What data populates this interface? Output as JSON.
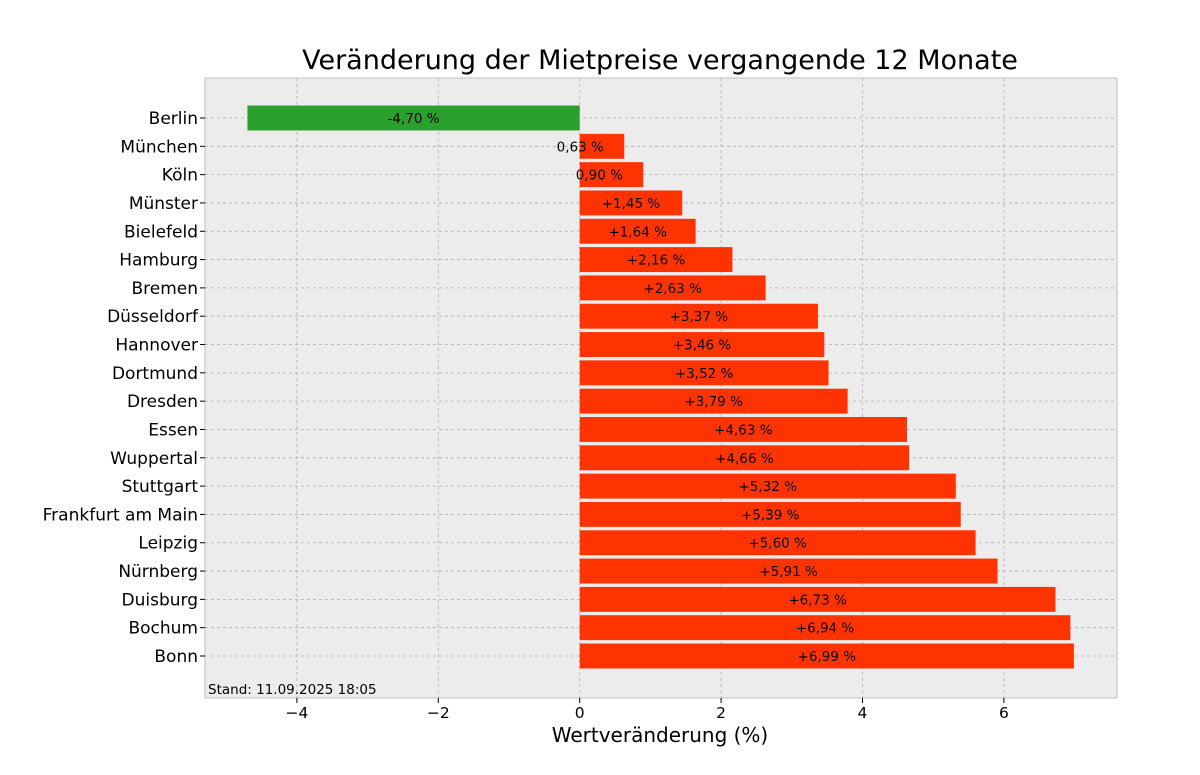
{
  "chart_data": {
    "type": "bar",
    "orientation": "horizontal",
    "title": "Veränderung der Mietpreise vergangende 12 Monate",
    "xlabel": "Wertveränderung (%)",
    "ylabel": "",
    "xlim": [
      -5.3,
      7.6
    ],
    "xticks": [
      -4,
      -2,
      0,
      2,
      4,
      6
    ],
    "xtick_labels": [
      "−4",
      "−2",
      "0",
      "2",
      "4",
      "6"
    ],
    "grid": true,
    "categories": [
      "Berlin",
      "München",
      "Köln",
      "Münster",
      "Bielefeld",
      "Hamburg",
      "Bremen",
      "Düsseldorf",
      "Hannover",
      "Dortmund",
      "Dresden",
      "Essen",
      "Wuppertal",
      "Stuttgart",
      "Frankfurt am Main",
      "Leipzig",
      "Nürnberg",
      "Duisburg",
      "Bochum",
      "Bonn"
    ],
    "values": [
      -4.7,
      0.63,
      0.9,
      1.45,
      1.64,
      2.16,
      2.63,
      3.37,
      3.46,
      3.52,
      3.79,
      4.63,
      4.66,
      5.32,
      5.39,
      5.6,
      5.91,
      6.73,
      6.94,
      6.99
    ],
    "value_labels": [
      "-4,70 %",
      "0,63 %",
      "0,90 %",
      "+1,45 %",
      "+1,64 %",
      "+2,16 %",
      "+2,63 %",
      "+3,37 %",
      "+3,46 %",
      "+3,52 %",
      "+3,79 %",
      "+4,63 %",
      "+4,66 %",
      "+5,32 %",
      "+5,39 %",
      "+5,60 %",
      "+5,91 %",
      "+6,73 %",
      "+6,94 %",
      "+6,99 %"
    ],
    "colors": {
      "negative": "#2ca02c",
      "positive": "#ff3300",
      "plot_background": "#ececec",
      "grid": "#b0b0b0"
    },
    "footnote": "Stand: 11.09.2025 18:05"
  }
}
